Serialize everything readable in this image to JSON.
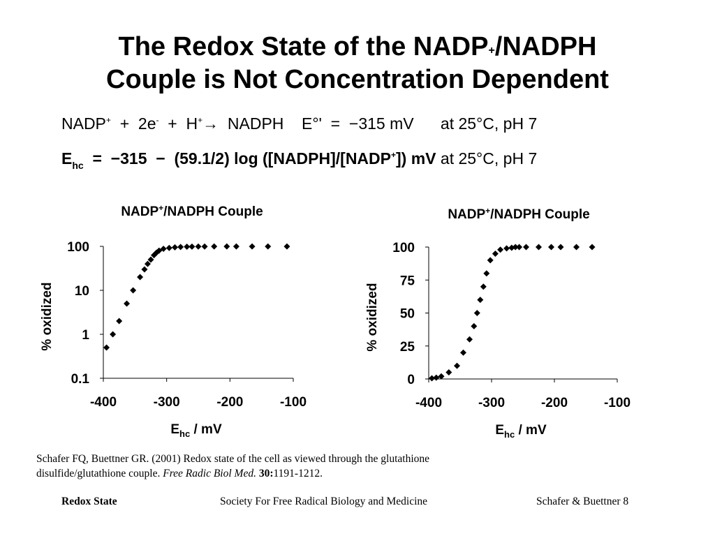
{
  "slide": {
    "title_line1_a": "The Redox State of the NADP",
    "title_line1_sup": "+",
    "title_line1_b": "/NADPH",
    "title_line2": "Couple is Not Concentration Dependent",
    "eq1": {
      "nadp": "NADP",
      "sup_plus": "+",
      "plus_2e": "  +  2e",
      "sup_minus": "-",
      "plus_h": "  +  H",
      "sup_plus2": "+",
      "arrow_nadph": "→  NADPH    E°'  =  −315 mV      at 25°C, pH 7"
    },
    "eq2": {
      "e": "E",
      "sub_hc": "hc",
      "main_a": "  =  −315  −  (59.1/2) log ([NADPH]/[NADP",
      "sup_plus": "+",
      "main_b": "]) mV",
      "tail": " at 25°C, pH 7"
    },
    "citation_line1": "Schafer FQ, Buettner GR. (2001) Redox state of the cell as viewed through the glutathione",
    "citation_line2_a": "disulfide/glutathione couple.  ",
    "citation_journal": "Free Radic Biol Med.",
    "citation_vol": " 30:",
    "citation_pages": "1191-1212.",
    "footer_left": "Redox State",
    "footer_center": "Society For Free Radical Biology and Medicine",
    "footer_right": "Schafer & Buettner 8"
  },
  "chart_data": [
    {
      "type": "scatter",
      "title_a": "NADP",
      "title_sup": "+",
      "title_b": "/NADPH Couple",
      "xlabel_main": "E",
      "xlabel_sub": "hc",
      "xlabel_unit": " / mV",
      "ylabel": "% oxidized",
      "y_scale": "log",
      "xlim": [
        -400,
        -100
      ],
      "ylim": [
        0.1,
        100
      ],
      "xticks": [
        -400,
        -300,
        -200,
        -100
      ],
      "xtick_labels": [
        "-400",
        "-300",
        "-200",
        "-100"
      ],
      "yticks": [
        0.1,
        1,
        10,
        100
      ],
      "ytick_labels": [
        "0.1",
        "1",
        "10",
        "100"
      ],
      "marker_color": "#000000",
      "x": [
        -395,
        -385,
        -375,
        -363,
        -353,
        -342,
        -335,
        -330,
        -325,
        -320,
        -316,
        -312,
        -305,
        -296,
        -287,
        -278,
        -268,
        -260,
        -250,
        -240,
        -225,
        -205,
        -190,
        -165,
        -140,
        -110
      ],
      "y": [
        0.5,
        1,
        2,
        5,
        10,
        20,
        30,
        40,
        50,
        63,
        72,
        80,
        88,
        92,
        95,
        97,
        98,
        98.5,
        99,
        99,
        99.5,
        99.5,
        99.5,
        99.5,
        99.5,
        99.5
      ]
    },
    {
      "type": "scatter",
      "title_a": "NADP",
      "title_sup": "+",
      "title_b": "/NADPH Couple",
      "xlabel_main": "E",
      "xlabel_sub": "hc",
      "xlabel_unit": " / mV",
      "ylabel": "% oxidized",
      "y_scale": "linear",
      "xlim": [
        -400,
        -100
      ],
      "ylim": [
        0,
        100
      ],
      "xticks": [
        -400,
        -300,
        -200,
        -100
      ],
      "xtick_labels": [
        "-400",
        "-300",
        "-200",
        "-100"
      ],
      "yticks": [
        0,
        25,
        50,
        75,
        100
      ],
      "ytick_labels": [
        "0",
        "25",
        "50",
        "75",
        "100"
      ],
      "marker_color": "#000000",
      "x": [
        -395,
        -388,
        -380,
        -368,
        -355,
        -345,
        -335,
        -328,
        -323,
        -318,
        -313,
        -308,
        -302,
        -294,
        -286,
        -276,
        -268,
        -262,
        -256,
        -245,
        -225,
        -205,
        -190,
        -165,
        -140
      ],
      "y": [
        0.5,
        1,
        2,
        5,
        10,
        20,
        30,
        40,
        50,
        60,
        70,
        80,
        90,
        95,
        98,
        99,
        99.5,
        100,
        100,
        100,
        100,
        100,
        100,
        100,
        100
      ]
    }
  ]
}
